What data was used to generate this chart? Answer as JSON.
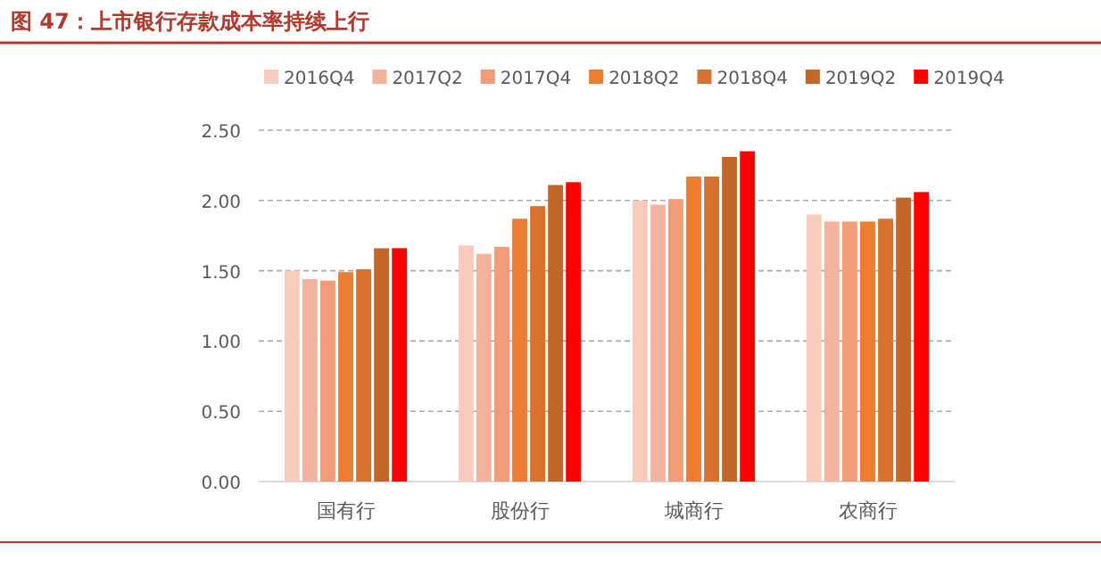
{
  "chart_data": {
    "type": "bar",
    "title": "图 47：上市银行存款成本率持续上行",
    "categories": [
      "国有行",
      "股份行",
      "城商行",
      "农商行"
    ],
    "series": [
      {
        "name": "2016Q4",
        "color": "#f8cbbd",
        "values": [
          1.5,
          1.68,
          2.0,
          1.9
        ]
      },
      {
        "name": "2017Q2",
        "color": "#f4b39d",
        "values": [
          1.44,
          1.62,
          1.97,
          1.85
        ]
      },
      {
        "name": "2017Q4",
        "color": "#f09c78",
        "values": [
          1.43,
          1.67,
          2.01,
          1.85
        ]
      },
      {
        "name": "2018Q2",
        "color": "#ed7d31",
        "values": [
          1.49,
          1.87,
          2.17,
          1.85
        ]
      },
      {
        "name": "2018Q4",
        "color": "#d9722f",
        "values": [
          1.51,
          1.96,
          2.17,
          1.87
        ]
      },
      {
        "name": "2019Q2",
        "color": "#c4652a",
        "values": [
          1.66,
          2.11,
          2.31,
          2.02
        ]
      },
      {
        "name": "2019Q4",
        "color": "#ff0000",
        "values": [
          1.66,
          2.13,
          2.35,
          2.06
        ]
      }
    ],
    "ylim": [
      0,
      2.5
    ],
    "yticks": [
      {
        "value": 0,
        "label": "0.00"
      },
      {
        "value": 0.5,
        "label": "0.50"
      },
      {
        "value": 1,
        "label": "1.00"
      },
      {
        "value": 1.5,
        "label": "1.50"
      },
      {
        "value": 2,
        "label": "2.00"
      },
      {
        "value": 2.5,
        "label": "2.50"
      }
    ],
    "grid": "y",
    "legend": "top"
  }
}
